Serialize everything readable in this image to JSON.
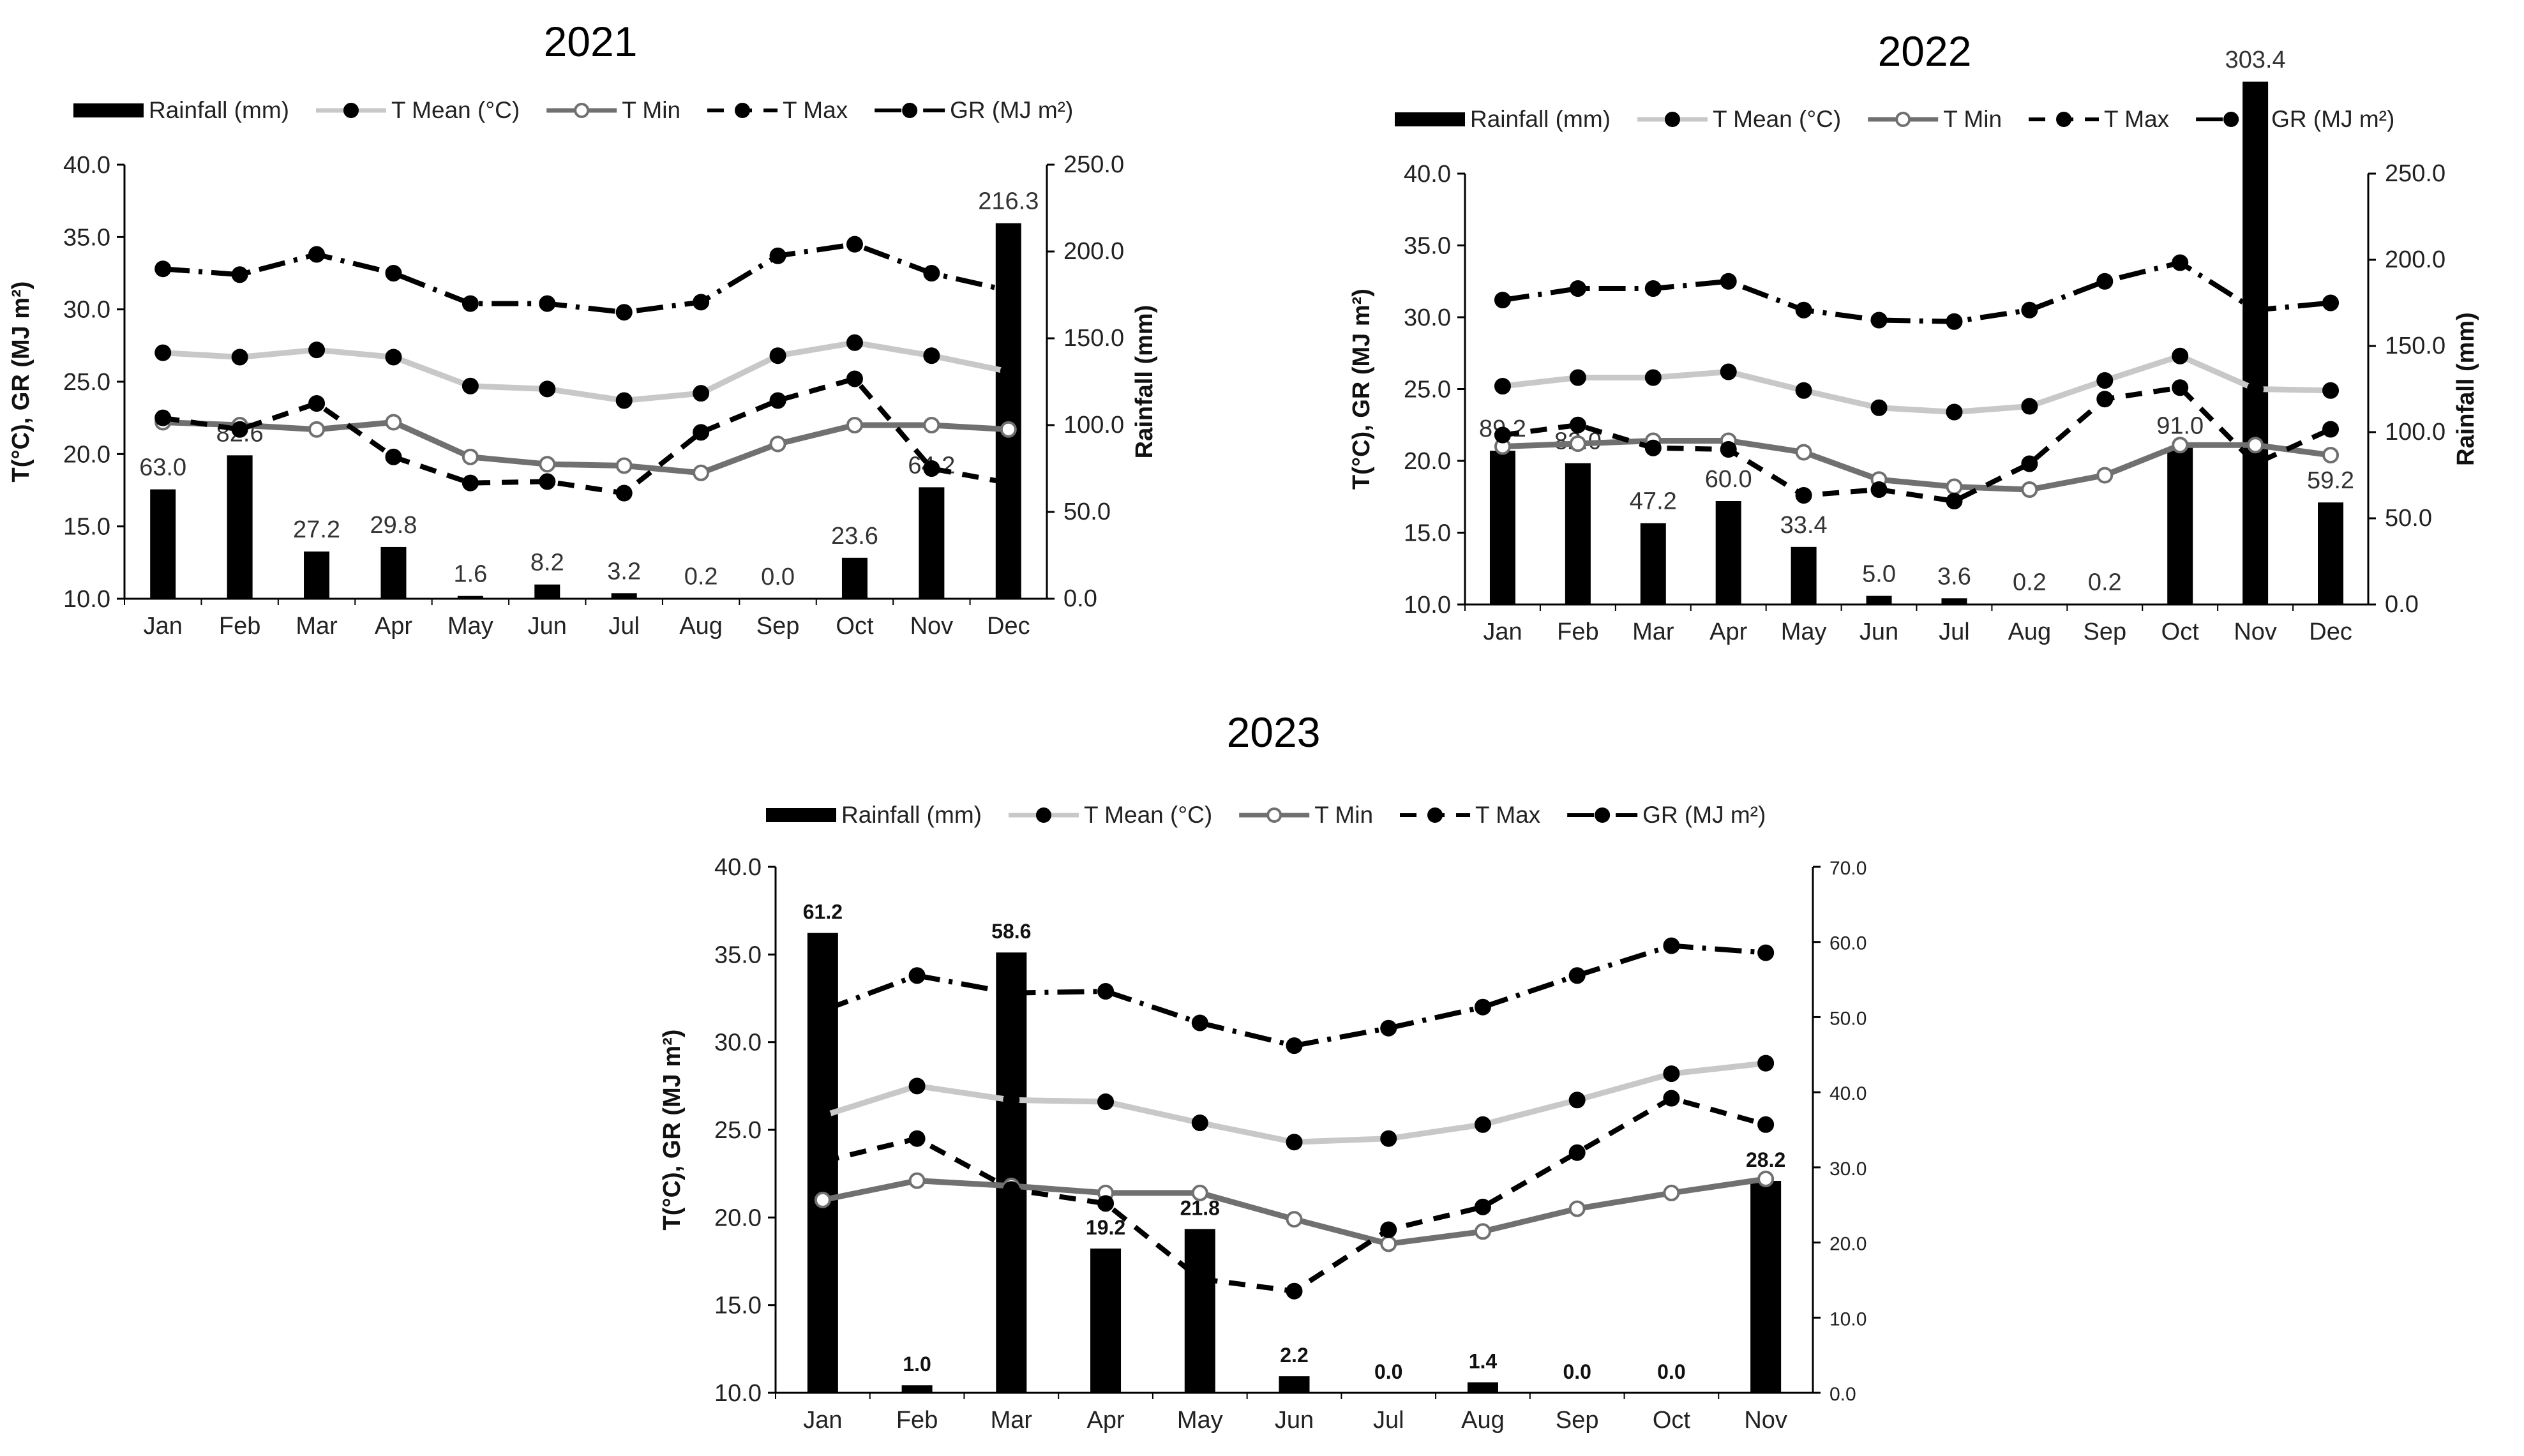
{
  "chart_data": [
    {
      "type": "bar",
      "title": "2021",
      "categories": [
        "Jan",
        "Feb",
        "Mar",
        "Apr",
        "May",
        "Jun",
        "Jul",
        "Aug",
        "Sep",
        "Oct",
        "Nov",
        "Dec"
      ],
      "legend": [
        "Rainfall (mm)",
        "T Mean (°C)",
        "T Min",
        "T Max",
        "GR (MJ m²)"
      ],
      "y_left_label": "T(°C), GR (MJ m²)",
      "y_right_label": "Rainfall (mm)",
      "y_left_range": [
        10,
        40
      ],
      "y_left_ticks": [
        "10.0",
        "15.0",
        "20.0",
        "25.0",
        "30.0",
        "35.0",
        "40.0"
      ],
      "y_right_range": [
        0,
        250
      ],
      "y_right_ticks": [
        "0.0",
        "50.0",
        "100.0",
        "150.0",
        "200.0",
        "250.0"
      ],
      "rainfall": [
        63.0,
        82.6,
        27.2,
        29.8,
        1.6,
        8.2,
        3.2,
        0.2,
        0.0,
        23.6,
        64.2,
        216.3
      ],
      "rainfall_labels": [
        "63.0",
        "82.6",
        "27.2",
        "29.8",
        "1.6",
        "8.2",
        "3.2",
        "0.2",
        "0.0",
        "23.6",
        "64.2",
        "216.3"
      ],
      "series": [
        {
          "name": "T Mean (°C)",
          "values": [
            27.0,
            26.7,
            27.2,
            26.7,
            24.7,
            24.5,
            23.7,
            24.2,
            26.8,
            27.7,
            26.8,
            25.7
          ]
        },
        {
          "name": "T Min",
          "values": [
            22.2,
            22.0,
            21.7,
            22.2,
            19.8,
            19.3,
            19.2,
            18.7,
            20.7,
            22.0,
            22.0,
            21.7
          ]
        },
        {
          "name": "T Max",
          "values": [
            22.5,
            21.7,
            23.5,
            19.8,
            18.0,
            18.1,
            17.3,
            21.5,
            23.7,
            25.2,
            19.0,
            18.0
          ]
        },
        {
          "name": "GR (MJ m²)",
          "values": [
            32.8,
            32.4,
            33.8,
            32.5,
            30.4,
            30.4,
            29.8,
            30.5,
            33.7,
            34.5,
            32.5,
            31.3
          ]
        }
      ]
    },
    {
      "type": "bar",
      "title": "2022",
      "categories": [
        "Jan",
        "Feb",
        "Mar",
        "Apr",
        "May",
        "Jun",
        "Jul",
        "Aug",
        "Sep",
        "Oct",
        "Nov",
        "Dec"
      ],
      "legend": [
        "Rainfall (mm)",
        "T Mean (°C)",
        "T Min",
        "T Max",
        "GR (MJ m²)"
      ],
      "y_left_label": "T(°C), GR (MJ m²)",
      "y_right_label": "Rainfall (mm)",
      "y_left_range": [
        10,
        40
      ],
      "y_left_ticks": [
        "10.0",
        "15.0",
        "20.0",
        "25.0",
        "30.0",
        "35.0",
        "40.0"
      ],
      "y_right_range": [
        0,
        250
      ],
      "y_right_ticks": [
        "0.0",
        "50.0",
        "100.0",
        "150.0",
        "200.0",
        "250.0"
      ],
      "rainfall": [
        89.2,
        82.0,
        47.2,
        60.0,
        33.4,
        5.0,
        3.6,
        0.2,
        0.2,
        91.0,
        303.4,
        59.2
      ],
      "rainfall_labels": [
        "89.2",
        "82.0",
        "47.2",
        "60.0",
        "33.4",
        "5.0",
        "3.6",
        "0.2",
        "0.2",
        "91.0",
        "303.4",
        "59.2"
      ],
      "series": [
        {
          "name": "T Mean (°C)",
          "values": [
            25.2,
            25.8,
            25.8,
            26.2,
            24.9,
            23.7,
            23.4,
            23.8,
            25.6,
            27.3,
            25.0,
            24.9
          ]
        },
        {
          "name": "T Min",
          "values": [
            21.0,
            21.2,
            21.4,
            21.4,
            20.6,
            18.7,
            18.2,
            18.0,
            19.0,
            21.1,
            21.1,
            20.4
          ]
        },
        {
          "name": "T Max",
          "values": [
            21.8,
            22.5,
            20.9,
            20.8,
            17.6,
            18.0,
            17.2,
            19.8,
            24.3,
            25.1,
            19.8,
            22.2
          ]
        },
        {
          "name": "GR (MJ m²)",
          "values": [
            31.2,
            32.0,
            32.0,
            32.5,
            30.5,
            29.8,
            29.7,
            30.5,
            32.5,
            33.8,
            30.5,
            31.0
          ]
        }
      ]
    },
    {
      "type": "bar",
      "title": "2023",
      "categories": [
        "Jan",
        "Feb",
        "Mar",
        "Apr",
        "May",
        "Jun",
        "Jul",
        "Aug",
        "Sep",
        "Oct",
        "Nov"
      ],
      "legend": [
        "Rainfall (mm)",
        "T Mean (°C)",
        "T Min",
        "T Max",
        "GR (MJ m²)"
      ],
      "y_left_label": "T(°C), GR (MJ m²)",
      "y_right_label": "Rainfall (mm)",
      "y_left_range": [
        10,
        40
      ],
      "y_left_ticks": [
        "10.0",
        "15.0",
        "20.0",
        "25.0",
        "30.0",
        "35.0",
        "40.0"
      ],
      "y_right_range": [
        0,
        70
      ],
      "y_right_ticks": [
        "0.0",
        "10.0",
        "20.0",
        "30.0",
        "40.0",
        "50.0",
        "60.0",
        "70.0"
      ],
      "rainfall": [
        61.2,
        1.0,
        58.6,
        19.2,
        21.8,
        2.2,
        0.0,
        1.4,
        0.0,
        0.0,
        28.2
      ],
      "rainfall_labels": [
        "61.2",
        "1.0",
        "58.6",
        "19.2",
        "21.8",
        "2.2",
        "0.0",
        "1.4",
        "0.0",
        "0.0",
        "28.2"
      ],
      "series": [
        {
          "name": "T Mean (°C)",
          "values": [
            25.8,
            27.5,
            26.7,
            26.6,
            25.4,
            24.3,
            24.5,
            25.3,
            26.7,
            28.2,
            28.8
          ]
        },
        {
          "name": "T Min",
          "values": [
            21.0,
            22.1,
            21.8,
            21.4,
            21.4,
            19.9,
            18.5,
            19.2,
            20.5,
            21.4,
            22.2
          ]
        },
        {
          "name": "T Max",
          "values": [
            23.2,
            24.5,
            21.6,
            20.8,
            16.5,
            15.8,
            19.3,
            20.6,
            23.7,
            26.8,
            25.3
          ]
        },
        {
          "name": "GR (MJ m²)",
          "values": [
            31.8,
            33.8,
            32.8,
            32.9,
            31.1,
            29.8,
            30.8,
            32.0,
            33.8,
            35.5,
            35.1
          ]
        }
      ]
    }
  ]
}
